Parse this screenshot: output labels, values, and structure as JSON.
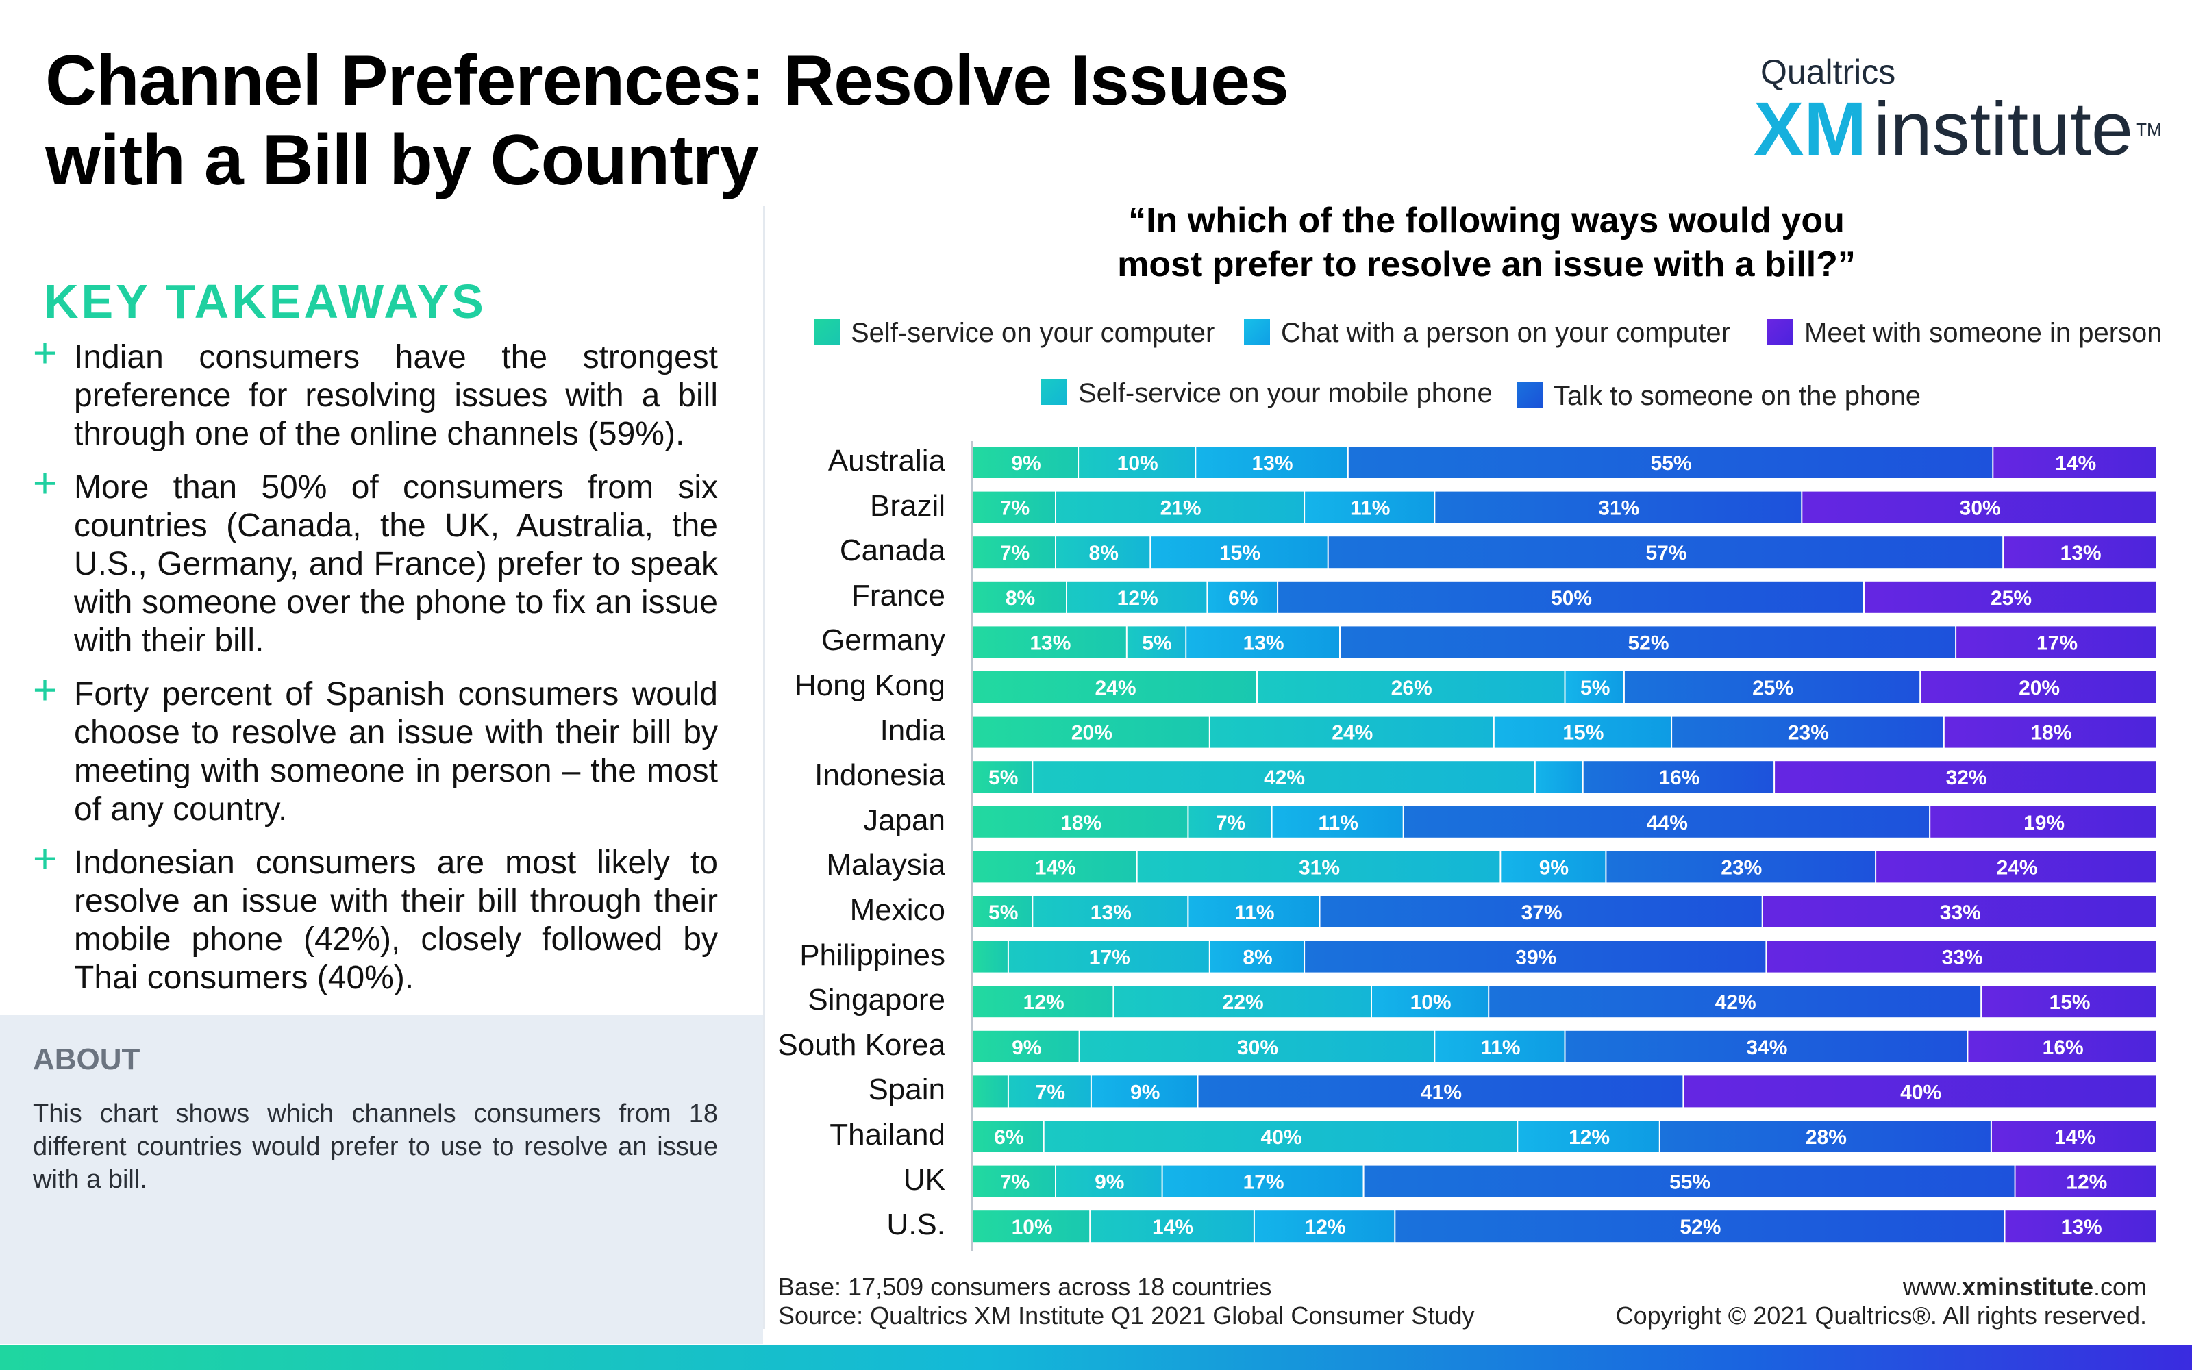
{
  "title": {
    "line1": "Channel Preferences: Resolve Issues",
    "line2": "with a Bill by Country"
  },
  "logo": {
    "top": "Qualtrics",
    "xm": "XM",
    "institute": "institute",
    "tm": "TM"
  },
  "key_takeaways": {
    "heading": "KEY TAKEAWAYS",
    "items": [
      "Indian consumers have the strongest preference for resolving issues with a bill through one of the online channels (59%).",
      "More than 50% of consumers from six countries (Canada, the UK, Australia, the U.S., Germany, and France) prefer to speak with someone over the phone to fix an issue with their bill.",
      "Forty percent of Spanish consumers would choose to resolve an issue with their bill by meeting with someone in person – the most of any country.",
      "Indonesian consumers are most likely to resolve an issue with their bill through their mobile phone (42%), closely followed by Thai consumers (40%)."
    ]
  },
  "about": {
    "heading": "ABOUT",
    "text": "This chart shows which channels consumers from 18 different countries would prefer to use to resolve an issue with a bill."
  },
  "question": {
    "line1": "“In which of the following ways would you",
    "line2": "most prefer to resolve an issue with a bill?”"
  },
  "footer": {
    "base": "Base: 17,509 consumers across 18 countries",
    "source": "Source: Qualtrics XM Institute Q1 2021 Global Consumer Study",
    "url_prefix": "www.",
    "url_bold": "xminstitute",
    "url_suffix": ".com",
    "copyright": "Copyright © 2021 Qualtrics®. All rights reserved."
  },
  "colors": {
    "self_service_computer": "#1fd6a0",
    "self_service_mobile": "#17c4cc",
    "chat_computer": "#11aee6",
    "phone": "#1c5fdc",
    "in_person": "#5b23e0"
  },
  "chart_data": {
    "type": "bar",
    "orientation": "horizontal",
    "stacked": true,
    "xlim": [
      0,
      100
    ],
    "legend_position": "top",
    "categories": [
      "Australia",
      "Brazil",
      "Canada",
      "France",
      "Germany",
      "Hong Kong",
      "India",
      "Indonesia",
      "Japan",
      "Malaysia",
      "Mexico",
      "Philippines",
      "Singapore",
      "South Korea",
      "Spain",
      "Thailand",
      "UK",
      "U.S."
    ],
    "series": [
      {
        "name": "Self-service on your computer",
        "values": [
          9,
          7,
          7,
          8,
          13,
          24,
          20,
          5,
          18,
          14,
          5,
          3,
          12,
          9,
          3,
          6,
          7,
          10
        ],
        "labels": [
          "9%",
          "7%",
          "7%",
          "8%",
          "13%",
          "24%",
          "20%",
          "5%",
          "18%",
          "14%",
          "5%",
          "",
          "12%",
          "9%",
          "",
          "6%",
          "7%",
          "10%"
        ]
      },
      {
        "name": "Self-service on your mobile phone",
        "values": [
          10,
          21,
          8,
          12,
          5,
          26,
          24,
          42,
          7,
          31,
          13,
          17,
          22,
          30,
          7,
          40,
          9,
          14
        ],
        "labels": [
          "10%",
          "21%",
          "8%",
          "12%",
          "5%",
          "26%",
          "24%",
          "42%",
          "7%",
          "31%",
          "13%",
          "17%",
          "22%",
          "30%",
          "7%",
          "40%",
          "9%",
          "14%"
        ]
      },
      {
        "name": "Chat with a person on your computer",
        "values": [
          13,
          11,
          15,
          6,
          13,
          5,
          15,
          4,
          11,
          9,
          11,
          8,
          10,
          11,
          9,
          12,
          17,
          12
        ],
        "labels": [
          "13%",
          "11%",
          "15%",
          "6%",
          "13%",
          "5%",
          "15%",
          "",
          "11%",
          "9%",
          "11%",
          "8%",
          "10%",
          "11%",
          "9%",
          "12%",
          "17%",
          "12%"
        ]
      },
      {
        "name": "Talk to someone on the phone",
        "values": [
          55,
          31,
          57,
          50,
          52,
          25,
          23,
          16,
          44,
          23,
          37,
          39,
          42,
          34,
          41,
          28,
          55,
          52
        ],
        "labels": [
          "55%",
          "31%",
          "57%",
          "50%",
          "52%",
          "25%",
          "23%",
          "16%",
          "44%",
          "23%",
          "37%",
          "39%",
          "42%",
          "34%",
          "41%",
          "28%",
          "55%",
          "52%"
        ]
      },
      {
        "name": "Meet with someone in person",
        "values": [
          14,
          30,
          13,
          25,
          17,
          20,
          18,
          32,
          19,
          24,
          33,
          33,
          15,
          16,
          40,
          14,
          12,
          13
        ],
        "labels": [
          "14%",
          "30%",
          "13%",
          "25%",
          "17%",
          "20%",
          "18%",
          "32%",
          "19%",
          "24%",
          "33%",
          "33%",
          "15%",
          "16%",
          "40%",
          "14%",
          "12%",
          "13%"
        ]
      }
    ]
  }
}
